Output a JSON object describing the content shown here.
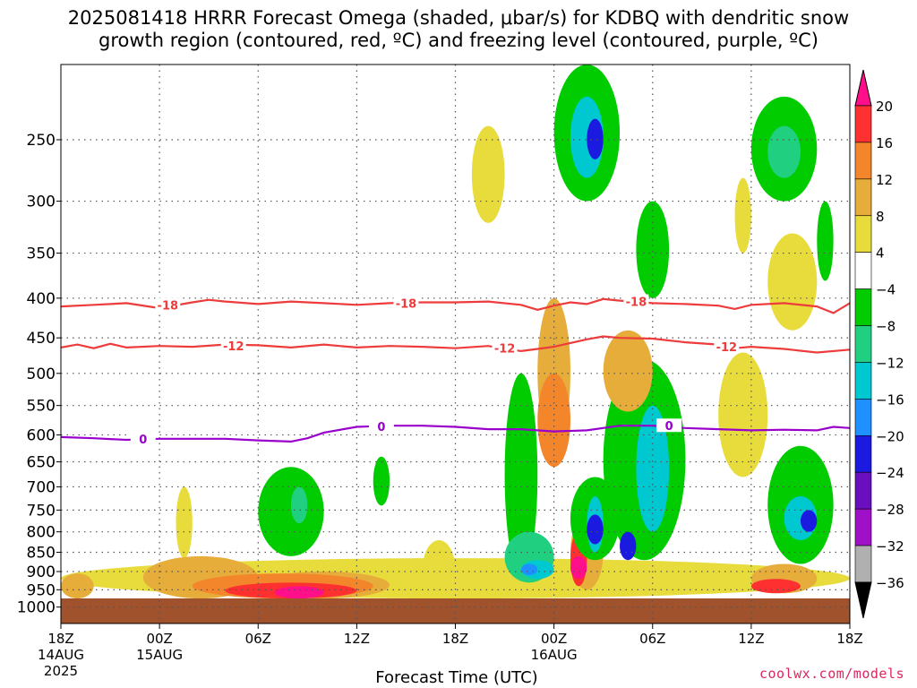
{
  "title_line1": "2025081418 HRRR Forecast Omega (shaded, μbar/s) for KDBQ with dendritic snow",
  "title_line2": "growth region (contoured, red, ºC) and freezing level (contoured, purple, ºC)",
  "credit": "coolwx.com/models",
  "colors": {
    "dgz_contour": "#ee3b3b",
    "freezing_contour": "#9900cc",
    "ground": "#a0522d",
    "grid": "#555555"
  },
  "chart_data": {
    "type": "heatmap",
    "title": "2025081418 HRRR Forecast Omega (shaded, μbar/s) for KDBQ with dendritic snow growth region (contoured, red, ºC) and freezing level (contoured, purple, ºC)",
    "xlabel": "Forecast Time (UTC)",
    "ylabel": "",
    "x_range_hours": [
      0,
      48
    ],
    "y_range_hPa": [
      200,
      1050
    ],
    "y_scale": "log",
    "grid": true,
    "x_ticks": [
      {
        "hour": 0,
        "label": "18Z",
        "sub1": "14AUG",
        "sub2": "2025"
      },
      {
        "hour": 6,
        "label": "00Z",
        "sub1": "15AUG",
        "sub2": ""
      },
      {
        "hour": 12,
        "label": "06Z",
        "sub1": "",
        "sub2": ""
      },
      {
        "hour": 18,
        "label": "12Z",
        "sub1": "",
        "sub2": ""
      },
      {
        "hour": 24,
        "label": "18Z",
        "sub1": "",
        "sub2": ""
      },
      {
        "hour": 30,
        "label": "00Z",
        "sub1": "16AUG",
        "sub2": ""
      },
      {
        "hour": 36,
        "label": "06Z",
        "sub1": "",
        "sub2": ""
      },
      {
        "hour": 42,
        "label": "12Z",
        "sub1": "",
        "sub2": ""
      },
      {
        "hour": 48,
        "label": "18Z",
        "sub1": "",
        "sub2": ""
      }
    ],
    "y_ticks": [
      {
        "p": 250,
        "label": "250"
      },
      {
        "p": 300,
        "label": "300"
      },
      {
        "p": 350,
        "label": "350"
      },
      {
        "p": 400,
        "label": "400"
      },
      {
        "p": 450,
        "label": "450"
      },
      {
        "p": 500,
        "label": "500"
      },
      {
        "p": 550,
        "label": "550"
      },
      {
        "p": 600,
        "label": "600"
      },
      {
        "p": 650,
        "label": "650"
      },
      {
        "p": 700,
        "label": "700"
      },
      {
        "p": 750,
        "label": "750"
      },
      {
        "p": 800,
        "label": "800"
      },
      {
        "p": 850,
        "label": "850"
      },
      {
        "p": 900,
        "label": "900"
      },
      {
        "p": 950,
        "label": "950"
      },
      {
        "p": 1000,
        "label": "1000"
      }
    ],
    "colorbar": [
      {
        "label": "20",
        "color": "#ff0f8a"
      },
      {
        "label": "16",
        "color": "#ff3030"
      },
      {
        "label": "12",
        "color": "#f3862b"
      },
      {
        "label": "8",
        "color": "#e6ad3a"
      },
      {
        "label": "4",
        "color": "#e8dc3c"
      },
      {
        "label": "−4",
        "color": "#ffffff"
      },
      {
        "label": "−8",
        "color": "#00cc00"
      },
      {
        "label": "−12",
        "color": "#20d080"
      },
      {
        "label": "−16",
        "color": "#00c8d0"
      },
      {
        "label": "−20",
        "color": "#1e90ff"
      },
      {
        "label": "−24",
        "color": "#1a1ae0"
      },
      {
        "label": "−28",
        "color": "#6a0fc0"
      },
      {
        "label": "−32",
        "color": "#a010c8"
      },
      {
        "label": "−36",
        "color": "#b0b0b0"
      },
      {
        "label": "",
        "color": "#000000"
      }
    ],
    "contours": [
      {
        "name": "dgz_-18",
        "label": "-18",
        "color": "#ee3b3b",
        "points": [
          [
            0,
            410
          ],
          [
            2,
            408
          ],
          [
            4,
            406
          ],
          [
            6,
            412
          ],
          [
            8,
            405
          ],
          [
            9,
            402
          ],
          [
            10,
            404
          ],
          [
            12,
            407
          ],
          [
            14,
            404
          ],
          [
            16,
            406
          ],
          [
            18,
            408
          ],
          [
            20,
            406
          ],
          [
            22,
            405
          ],
          [
            24,
            405
          ],
          [
            26,
            404
          ],
          [
            28,
            408
          ],
          [
            29,
            414
          ],
          [
            30,
            409
          ],
          [
            31,
            405
          ],
          [
            32,
            407
          ],
          [
            33,
            401
          ],
          [
            34,
            403
          ],
          [
            36,
            406
          ],
          [
            38,
            407
          ],
          [
            40,
            409
          ],
          [
            41,
            413
          ],
          [
            42,
            408
          ],
          [
            44,
            406
          ],
          [
            46,
            410
          ],
          [
            47,
            418
          ],
          [
            48,
            406
          ]
        ],
        "labels": [
          [
            6.5,
            408
          ],
          [
            21,
            406
          ],
          [
            35,
            404
          ]
        ]
      },
      {
        "name": "dgz_-12",
        "label": "-12",
        "color": "#ee3b3b",
        "points": [
          [
            0,
            463
          ],
          [
            1,
            459
          ],
          [
            2,
            464
          ],
          [
            3,
            458
          ],
          [
            4,
            463
          ],
          [
            6,
            461
          ],
          [
            8,
            462
          ],
          [
            10,
            459
          ],
          [
            12,
            460
          ],
          [
            14,
            463
          ],
          [
            16,
            459
          ],
          [
            18,
            463
          ],
          [
            20,
            461
          ],
          [
            22,
            462
          ],
          [
            24,
            464
          ],
          [
            26,
            461
          ],
          [
            28,
            468
          ],
          [
            29,
            465
          ],
          [
            30,
            462
          ],
          [
            32,
            452
          ],
          [
            33,
            448
          ],
          [
            34,
            450
          ],
          [
            36,
            451
          ],
          [
            38,
            456
          ],
          [
            40,
            459
          ],
          [
            41,
            464
          ],
          [
            42,
            462
          ],
          [
            44,
            465
          ],
          [
            46,
            470
          ],
          [
            48,
            466
          ]
        ],
        "labels": [
          [
            10.5,
            461
          ],
          [
            27,
            464
          ],
          [
            40.5,
            462
          ]
        ]
      },
      {
        "name": "freezing_level",
        "label": "0",
        "color": "#9900cc",
        "points": [
          [
            0,
            604
          ],
          [
            2,
            606
          ],
          [
            4,
            609
          ],
          [
            6,
            607
          ],
          [
            8,
            607
          ],
          [
            10,
            607
          ],
          [
            12,
            610
          ],
          [
            14,
            612
          ],
          [
            15,
            606
          ],
          [
            16,
            596
          ],
          [
            18,
            586
          ],
          [
            20,
            584
          ],
          [
            22,
            584
          ],
          [
            24,
            586
          ],
          [
            26,
            590
          ],
          [
            28,
            590
          ],
          [
            30,
            594
          ],
          [
            32,
            592
          ],
          [
            34,
            584
          ],
          [
            36,
            584
          ],
          [
            38,
            588
          ],
          [
            40,
            590
          ],
          [
            42,
            592
          ],
          [
            44,
            591
          ],
          [
            46,
            592
          ],
          [
            47,
            586
          ],
          [
            48,
            588
          ]
        ],
        "labels": [
          [
            5,
            607
          ],
          [
            19.5,
            585
          ],
          [
            37,
            584
          ]
        ]
      }
    ],
    "omega_regions": [
      {
        "c": 4,
        "hours": [
          0,
          48
        ],
        "p": [
          865,
          975
        ]
      },
      {
        "c": 4,
        "hours": [
          7,
          8
        ],
        "p": [
          700,
          865
        ]
      },
      {
        "c": 4,
        "hours": [
          22,
          24
        ],
        "p": [
          820,
          975
        ]
      },
      {
        "c": 3,
        "hours": [
          0,
          2
        ],
        "p": [
          905,
          975
        ]
      },
      {
        "c": 3,
        "hours": [
          5,
          12
        ],
        "p": [
          860,
          975
        ]
      },
      {
        "c": 3,
        "hours": [
          12,
          20
        ],
        "p": [
          900,
          975
        ]
      },
      {
        "c": 2,
        "hours": [
          8,
          19
        ],
        "p": [
          905,
          975
        ]
      },
      {
        "c": 1,
        "hours": [
          10,
          18
        ],
        "p": [
          930,
          975
        ]
      },
      {
        "c": 0,
        "hours": [
          13,
          16
        ],
        "p": [
          940,
          975
        ]
      },
      {
        "c": 6,
        "hours": [
          12,
          16
        ],
        "p": [
          660,
          860
        ]
      },
      {
        "c": 7,
        "hours": [
          14,
          15
        ],
        "p": [
          700,
          780
        ]
      },
      {
        "c": 6,
        "hours": [
          19,
          20
        ],
        "p": [
          640,
          740
        ]
      },
      {
        "c": 6,
        "hours": [
          27,
          29
        ],
        "p": [
          500,
          910
        ]
      },
      {
        "c": 7,
        "hours": [
          27,
          30
        ],
        "p": [
          800,
          930
        ]
      },
      {
        "c": 8,
        "hours": [
          28,
          30
        ],
        "p": [
          870,
          920
        ]
      },
      {
        "c": 9,
        "hours": [
          28,
          29
        ],
        "p": [
          880,
          910
        ]
      },
      {
        "c": 3,
        "hours": [
          29,
          31
        ],
        "p": [
          400,
          620
        ]
      },
      {
        "c": 2,
        "hours": [
          29,
          31
        ],
        "p": [
          500,
          660
        ]
      },
      {
        "c": 3,
        "hours": [
          31,
          33
        ],
        "p": [
          760,
          950
        ]
      },
      {
        "c": 1,
        "hours": [
          31,
          32
        ],
        "p": [
          800,
          940
        ]
      },
      {
        "c": 0,
        "hours": [
          31,
          32
        ],
        "p": [
          860,
          920
        ]
      },
      {
        "c": 6,
        "hours": [
          31,
          34
        ],
        "p": [
          680,
          870
        ]
      },
      {
        "c": 8,
        "hours": [
          32,
          33
        ],
        "p": [
          720,
          850
        ]
      },
      {
        "c": 10,
        "hours": [
          32,
          33
        ],
        "p": [
          760,
          830
        ]
      },
      {
        "c": 6,
        "hours": [
          30,
          34
        ],
        "p": [
          200,
          300
        ]
      },
      {
        "c": 8,
        "hours": [
          31,
          33
        ],
        "p": [
          220,
          280
        ]
      },
      {
        "c": 10,
        "hours": [
          32,
          33
        ],
        "p": [
          235,
          265
        ]
      },
      {
        "c": 6,
        "hours": [
          33,
          38
        ],
        "p": [
          480,
          870
        ]
      },
      {
        "c": 8,
        "hours": [
          35,
          37
        ],
        "p": [
          550,
          800
        ]
      },
      {
        "c": 10,
        "hours": [
          34,
          35
        ],
        "p": [
          800,
          870
        ]
      },
      {
        "c": 6,
        "hours": [
          35,
          37
        ],
        "p": [
          300,
          400
        ]
      },
      {
        "c": 3,
        "hours": [
          33,
          36
        ],
        "p": [
          440,
          560
        ]
      },
      {
        "c": 6,
        "hours": [
          42,
          46
        ],
        "p": [
          220,
          300
        ]
      },
      {
        "c": 7,
        "hours": [
          43,
          45
        ],
        "p": [
          240,
          280
        ]
      },
      {
        "c": 6,
        "hours": [
          43,
          47
        ],
        "p": [
          620,
          880
        ]
      },
      {
        "c": 8,
        "hours": [
          44,
          46
        ],
        "p": [
          720,
          820
        ]
      },
      {
        "c": 10,
        "hours": [
          45,
          46
        ],
        "p": [
          750,
          800
        ]
      },
      {
        "c": 3,
        "hours": [
          42,
          46
        ],
        "p": [
          880,
          960
        ]
      },
      {
        "c": 1,
        "hours": [
          42,
          45
        ],
        "p": [
          920,
          960
        ]
      },
      {
        "c": 3,
        "hours": [
          44,
          45
        ],
        "p": [
          360,
          430
        ]
      },
      {
        "c": 4,
        "hours": [
          41,
          42
        ],
        "p": [
          280,
          350
        ]
      },
      {
        "c": 4,
        "hours": [
          43,
          46
        ],
        "p": [
          330,
          440
        ]
      },
      {
        "c": 4,
        "hours": [
          40,
          43
        ],
        "p": [
          470,
          680
        ]
      },
      {
        "c": 6,
        "hours": [
          46,
          47
        ],
        "p": [
          300,
          380
        ]
      },
      {
        "c": 4,
        "hours": [
          25,
          27
        ],
        "p": [
          240,
          320
        ]
      }
    ]
  }
}
